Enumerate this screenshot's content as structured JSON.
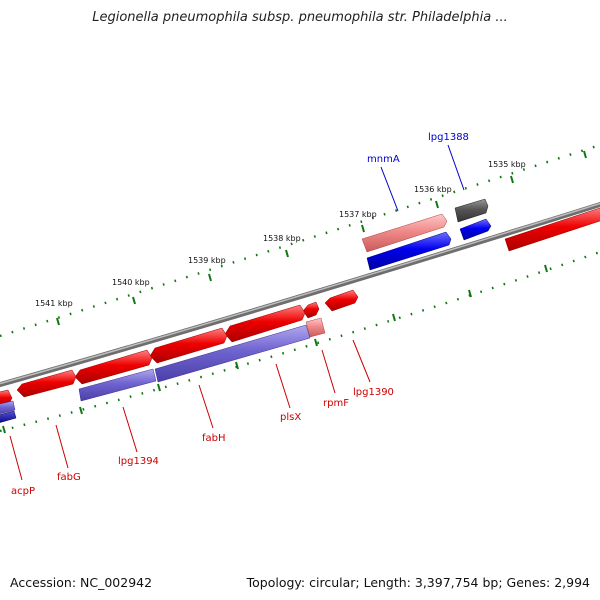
{
  "title": "Legionella pneumophila subsp. pneumophila str. Philadelphia ...",
  "accession_text": "Accession: NC_002942",
  "genome_info": "Topology: circular; Length: 3,397,754 bp; Genes: 2,994",
  "scale_labels": [
    "1535 kbp",
    "1536 kbp",
    "1537 kbp",
    "1538 kbp",
    "1539 kbp",
    "1540 kbp",
    "1541 kbp"
  ],
  "gene_labels": [
    {
      "name": "lpg1388",
      "color": "#0000cc"
    },
    {
      "name": "mnmA",
      "color": "#0000cc"
    },
    {
      "name": "lpg1390",
      "color": "#cc0000"
    },
    {
      "name": "rpmF",
      "color": "#cc0000"
    },
    {
      "name": "plsX",
      "color": "#cc0000"
    },
    {
      "name": "fabH",
      "color": "#cc0000"
    },
    {
      "name": "lpg1394",
      "color": "#cc0000"
    },
    {
      "name": "fabG",
      "color": "#cc0000"
    },
    {
      "name": "acpP",
      "color": "#cc0000"
    }
  ],
  "colors": {
    "forward_cds": "#ee0000",
    "reverse_cds": "#0000ee",
    "operon": "#6655cc",
    "other": "#555555",
    "ticks": "#117711",
    "backbone": "#888888"
  }
}
